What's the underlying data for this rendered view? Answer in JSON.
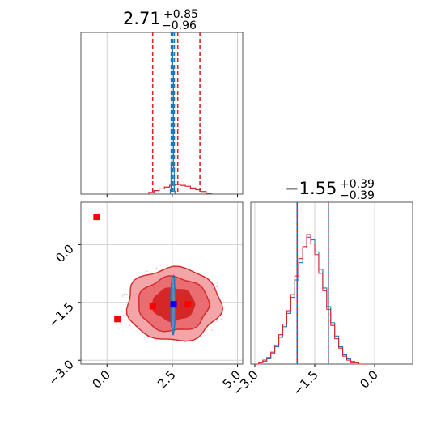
{
  "chart_data": [
    {
      "panel": "marginal-x",
      "type": "histogram",
      "title": {
        "value": "2.71",
        "plus": "+0.85",
        "minus": "−0.96"
      },
      "xlim": [
        -1.0,
        5.2
      ],
      "xticks": [
        "0.0",
        "2.5",
        "5.0"
      ],
      "grid": true,
      "series": [
        {
          "color": "#d62728",
          "kind": "histogram",
          "x": [
            1.7,
            1.9,
            2.1,
            2.3,
            2.5,
            2.7,
            2.9,
            3.1,
            3.3,
            3.5,
            3.7,
            3.9
          ],
          "values": [
            0.2,
            0.4,
            0.6,
            0.8,
            1.0,
            1.1,
            1.0,
            0.9,
            0.7,
            0.5,
            0.3,
            0.1
          ]
        },
        {
          "color": "#1f77b4",
          "kind": "histogram",
          "x": [
            2.44,
            2.47,
            2.5,
            2.53,
            2.56,
            2.59
          ],
          "values": [
            3,
            22,
            100,
            88,
            18,
            2
          ]
        }
      ],
      "quantile_lines": [
        {
          "color": "#d62728",
          "x": [
            1.75,
            2.71,
            3.56
          ]
        },
        {
          "color": "#1f77b4",
          "x": [
            2.46,
            2.52,
            2.58
          ]
        }
      ]
    },
    {
      "panel": "marginal-y",
      "type": "histogram",
      "title": {
        "value": "−1.55",
        "plus": "+0.39",
        "minus": "−0.39"
      },
      "xlim": [
        -3.1,
        0.95
      ],
      "xticks": [
        "−3.0",
        "−1.5",
        "0.0"
      ],
      "grid": true,
      "series": [
        {
          "color": "#1f77b4",
          "kind": "histogram",
          "x": [
            -2.95,
            -2.85,
            -2.75,
            -2.65,
            -2.55,
            -2.45,
            -2.35,
            -2.25,
            -2.15,
            -2.05,
            -1.95,
            -1.85,
            -1.75,
            -1.65,
            -1.55,
            -1.45,
            -1.35,
            -1.25,
            -1.15,
            -1.05,
            -0.95,
            -0.85,
            -0.75,
            -0.65,
            -0.55,
            -0.45,
            -0.35,
            -0.25
          ],
          "values": [
            0,
            1,
            2,
            4,
            8,
            13,
            20,
            28,
            38,
            50,
            63,
            76,
            87,
            95,
            93,
            84,
            71,
            57,
            43,
            31,
            21,
            13,
            7,
            4,
            2,
            1,
            0,
            0
          ]
        },
        {
          "color": "#d62728",
          "kind": "histogram",
          "x": [
            -2.95,
            -2.85,
            -2.75,
            -2.65,
            -2.55,
            -2.45,
            -2.35,
            -2.25,
            -2.15,
            -2.05,
            -1.95,
            -1.85,
            -1.75,
            -1.65,
            -1.55,
            -1.45,
            -1.35,
            -1.25,
            -1.15,
            -1.05,
            -0.95,
            -0.85,
            -0.75,
            -0.65,
            -0.55,
            -0.45,
            -0.35,
            -0.25
          ],
          "values": [
            0,
            1,
            3,
            5,
            9,
            14,
            22,
            30,
            40,
            52,
            66,
            79,
            88,
            97,
            90,
            82,
            68,
            55,
            41,
            29,
            19,
            12,
            6,
            3,
            1,
            1,
            0,
            0
          ]
        }
      ],
      "quantile_lines": [
        {
          "color": "#d62728",
          "x": [
            -1.94,
            -1.16
          ]
        },
        {
          "color": "#1f77b4",
          "x": [
            -1.94,
            -1.16
          ]
        }
      ]
    },
    {
      "panel": "joint",
      "type": "scatter",
      "xlim": [
        -1.0,
        5.2
      ],
      "ylim": [
        -3.1,
        1.1
      ],
      "xticks": [
        "0.0",
        "2.5",
        "5.0"
      ],
      "yticks": [
        "−3.0",
        "−1.5",
        "0.0"
      ],
      "grid": true,
      "contours": [
        {
          "color": "#d62728",
          "level": 3,
          "center": [
            2.55,
            -1.55
          ],
          "rx": 1.8,
          "ry": 0.95,
          "fill": "#f3a5a8"
        },
        {
          "color": "#d62728",
          "level": 2,
          "center": [
            2.55,
            -1.55
          ],
          "rx": 1.35,
          "ry": 0.7,
          "fill": "#ea6d72"
        },
        {
          "color": "#d62728",
          "level": 1,
          "center": [
            2.55,
            -1.55
          ],
          "rx": 0.8,
          "ry": 0.42,
          "fill": "#d62728"
        },
        {
          "color": "#1f77b4",
          "level": 1,
          "center": [
            2.53,
            -1.55
          ],
          "rx": 0.09,
          "ry": 0.75,
          "fill": "#4d93c8"
        }
      ],
      "markers": [
        {
          "color": "#ff0000",
          "x": -0.4,
          "y": 0.72
        },
        {
          "color": "#ff0000",
          "x": 0.4,
          "y": -1.93
        },
        {
          "color": "#ff0000",
          "x": 1.75,
          "y": -1.6
        },
        {
          "color": "#ff0000",
          "x": 3.1,
          "y": -1.55
        },
        {
          "color": "#0000ff",
          "x": 2.55,
          "y": -1.55
        }
      ]
    }
  ]
}
